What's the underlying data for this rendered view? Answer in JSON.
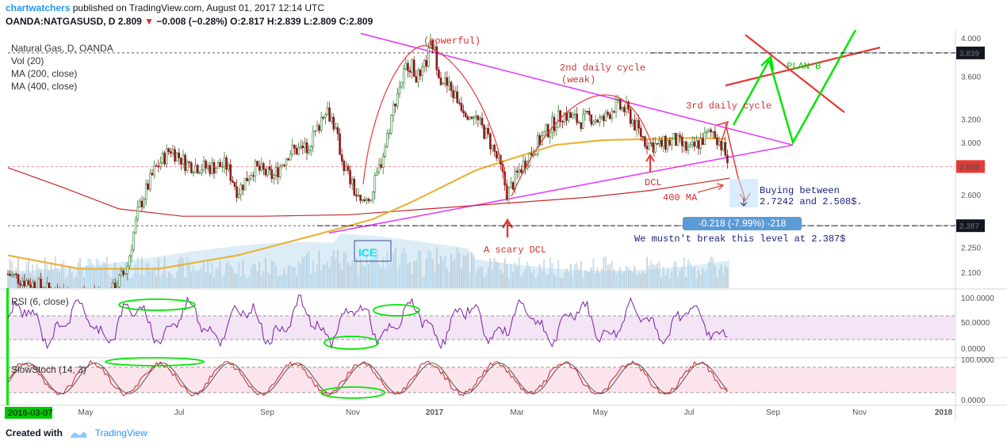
{
  "header": {
    "author": "chartwatchers",
    "published_text": "published on TradingView.com, August 01, 2017 12:14 UTC",
    "symbol": "OANDA:NATGASUSD, D",
    "last": "2.809",
    "change": "−0.008 (−0.28%)",
    "ohlc": "O:2.817 H:2.839 L:2.809 C:2.809"
  },
  "footer": {
    "created_with": "Created with",
    "brand": "TradingView"
  },
  "legend": {
    "title": "Natural Gas, D, OANDA",
    "vol": "Vol (20)",
    "ma200": "MA (200, close)",
    "ma400": "MA (400, close)"
  },
  "colors": {
    "up_candle": "#2e7d32",
    "down_candle": "#8b1a1a",
    "ma200": "#e8b43a",
    "ma400": "#c62828",
    "trendline": "#e040fb",
    "rsi": "#7b1fa2",
    "stoch_k": "#c62828",
    "stoch_d": "#555555",
    "highlight": "#00e600",
    "volume": "#9fcbe8"
  },
  "panes": {
    "rsi_label": "RSI (6, close)",
    "stoch_label": "SlowStoch (14, 3)"
  },
  "chart_data": {
    "type": "candlestick",
    "price_scale": "log",
    "price_ticks": [
      "4.000",
      "3.600",
      "3.200",
      "3.000",
      "2.600",
      "2.250",
      "2.100"
    ],
    "price_ticks_values": [
      4.0,
      3.6,
      3.2,
      3.0,
      2.6,
      2.25,
      2.1
    ],
    "price_tags": [
      {
        "label": "3.839",
        "value": 3.839,
        "color": "#131722"
      },
      {
        "label": "2.809",
        "value": 2.809,
        "color": "#e53935"
      },
      {
        "label": "2.387",
        "value": 2.387,
        "color": "#131722"
      }
    ],
    "rsi_ticks": [
      "100.0000",
      "50.0000",
      "0.0000"
    ],
    "stoch_ticks": [
      "100.0000",
      "0.0000"
    ],
    "x_ticks": [
      "May",
      "Jul",
      "Sep",
      "Nov",
      "2017",
      "Mar",
      "May",
      "Jul",
      "Sep",
      "Nov",
      "2018"
    ],
    "x_start_label": "2016-03-07",
    "series": [
      {
        "name": "Vol (20)"
      },
      {
        "name": "MA (200, close)"
      },
      {
        "name": "MA (400, close)"
      }
    ],
    "key_levels": {
      "resistance": 3.839,
      "last": 2.809,
      "support": 2.387
    },
    "measure_label": "-0.218 (-7.99%) -218",
    "annotations": {
      "powerful": "(powerful)",
      "cycle2": "2nd daily cycle",
      "weak": "(weak)",
      "cycle3": "3rd daily cycle",
      "dcl": "DCL",
      "ma400": "400 MA",
      "scary_dcl": "A scary DCL",
      "plan_b": "PLAN B",
      "ice": "ICE",
      "buying1": "Buying between",
      "buying2": "2.7242 and 2.508$.",
      "mustnt": "We mustn't break this level at 2.387$"
    }
  }
}
